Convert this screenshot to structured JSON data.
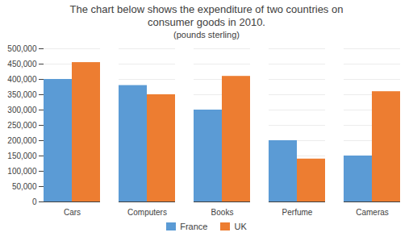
{
  "chart_data": {
    "type": "bar",
    "title": "The chart below shows the expenditure of two countries on\nconsumer goods in 2010.",
    "subtitle": "(pounds sterling)",
    "categories": [
      "Cars",
      "Computers",
      "Books",
      "Perfume",
      "Cameras"
    ],
    "series": [
      {
        "name": "France",
        "color": "#5B9BD5",
        "values": [
          400000,
          380000,
          300000,
          200000,
          150000
        ]
      },
      {
        "name": "UK",
        "color": "#ED7D31",
        "values": [
          455000,
          350000,
          410000,
          140000,
          360000
        ]
      }
    ],
    "ylim": [
      0,
      500000
    ],
    "yticks": [
      0,
      {
        "value": 50000,
        "label": "50,000"
      },
      {
        "value": 100000,
        "label": "100,000"
      },
      {
        "value": 150000,
        "label": "150,000"
      },
      {
        "value": 200000,
        "label": "200,000"
      },
      {
        "value": 250000,
        "label": "250,000"
      },
      {
        "value": 300000,
        "label": "300,000"
      },
      {
        "value": 350000,
        "label": "350,000"
      },
      {
        "value": 400000,
        "label": "400,000"
      },
      {
        "value": 450000,
        "label": "450,000"
      },
      {
        "value": 500000,
        "label": "500,000"
      }
    ],
    "grid": true,
    "legend": "bottom"
  }
}
